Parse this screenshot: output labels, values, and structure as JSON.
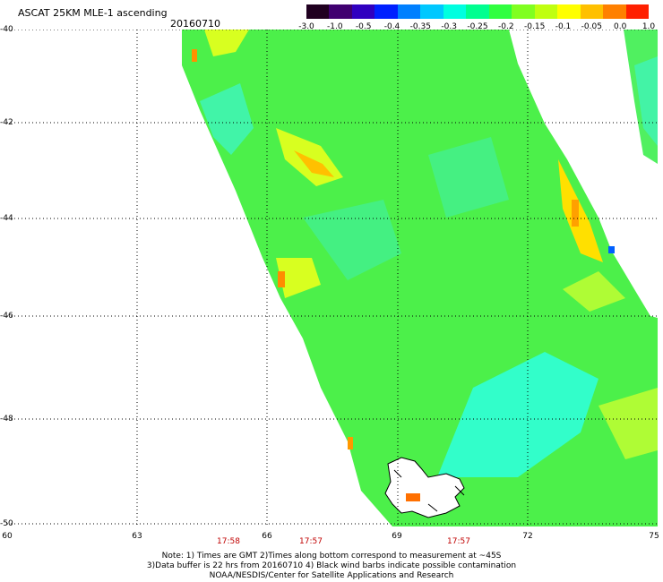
{
  "header": {
    "title": "ASCAT 25KM MLE-1 ascending",
    "date": "20160710"
  },
  "colorbar": {
    "labels": [
      "-3.0",
      "-1.0",
      "-0.5",
      "-0.4",
      "-0.35",
      "-0.3",
      "-0.25",
      "-0.2",
      "-0.15",
      "-0.1",
      "-0.05",
      "0.0",
      "1.0"
    ],
    "colors": [
      "#200020",
      "#400070",
      "#3000c0",
      "#0020ff",
      "#0080ff",
      "#00c8ff",
      "#00ffe0",
      "#00ff90",
      "#30ff40",
      "#80ff20",
      "#c0ff10",
      "#ffff00",
      "#ffc000",
      "#ff8000",
      "#ff2000"
    ]
  },
  "map": {
    "lat_labels": [
      "-40",
      "-42",
      "-44",
      "-46",
      "-48",
      "-50"
    ],
    "lon_labels": [
      "60",
      "63",
      "66",
      "69",
      "72",
      "75"
    ],
    "times": [
      "17:58",
      "17:57",
      "17:57"
    ],
    "land_fill": "#ff8000",
    "water_base": "#40f060"
  },
  "notes": [
    "Note: 1) Times are GMT 2)Times along bottom correspond to measurement at ~45S",
    "3)Data buffer is 22 hrs from 20160710 4) Black wind barbs indicate possible contamination",
    "NOAA/NESDIS/Center for Satellite Applications and Research"
  ]
}
